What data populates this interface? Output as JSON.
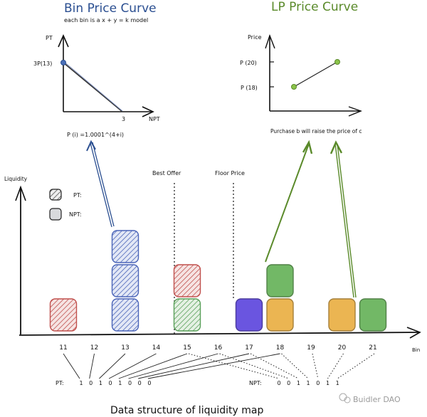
{
  "bin_curve": {
    "title": "Bin Price Curve",
    "subtitle": "each bin is a x + y = k model",
    "y_axis_label": "PT",
    "x_axis_label": "NPT",
    "y_point_label": "3P(13)",
    "x_point_label": "3",
    "formula": "P (i) =1.0001^(4+i)",
    "color": "#2b4f91"
  },
  "lp_curve": {
    "title": "LP Price Curve",
    "y_axis_label": "Price",
    "tick_high": "P (20)",
    "tick_low": "P (18)",
    "caption": "Purchase b will raise the price of c",
    "color": "#5a8a2a",
    "point_color": "#8bc34a"
  },
  "liquidity_map": {
    "y_axis_label": "Liquidity",
    "x_axis_label": "Bin",
    "legend": [
      {
        "label": "PT:",
        "style": "hatched"
      },
      {
        "label": "NPT:",
        "style": "solid-gray"
      }
    ],
    "markers": [
      {
        "label": "Best Offer",
        "bin": 15
      },
      {
        "label": "Floor Price",
        "bin": 17
      }
    ],
    "bins": [
      "11",
      "12",
      "13",
      "14",
      "15",
      "16",
      "17",
      "18",
      "19",
      "20",
      "21"
    ],
    "stacks": [
      {
        "bin": "11",
        "blocks": [
          {
            "style": "hatched",
            "color": "#c0504d"
          }
        ]
      },
      {
        "bin": "13",
        "blocks": [
          {
            "style": "hatched",
            "color": "#4a64b8"
          },
          {
            "style": "hatched",
            "color": "#4a64b8"
          },
          {
            "style": "hatched",
            "color": "#4a64b8"
          }
        ]
      },
      {
        "bin": "15",
        "blocks": [
          {
            "style": "hatched",
            "color": "#5aa05a"
          },
          {
            "style": "hatched",
            "color": "#c0504d"
          }
        ]
      },
      {
        "bin": "17",
        "blocks": [
          {
            "style": "solid",
            "color": "#6a55e0"
          }
        ]
      },
      {
        "bin": "18",
        "blocks": [
          {
            "style": "solid",
            "color": "#ebb552"
          },
          {
            "style": "solid",
            "color": "#72b866"
          }
        ]
      },
      {
        "bin": "20",
        "blocks": [
          {
            "style": "solid",
            "color": "#ebb552"
          }
        ]
      },
      {
        "bin": "21",
        "blocks": [
          {
            "style": "solid",
            "color": "#72b866"
          }
        ]
      }
    ],
    "pt_label": "PT:",
    "pt_bits": [
      "1",
      "0",
      "1",
      "0",
      "1",
      "0",
      "0",
      "0"
    ],
    "npt_label": "NPT:",
    "npt_bits": [
      "0",
      "0",
      "1",
      "1",
      "0",
      "1",
      "1"
    ],
    "caption": "Data structure of liquidity map"
  },
  "watermark": "Buidler DAO"
}
